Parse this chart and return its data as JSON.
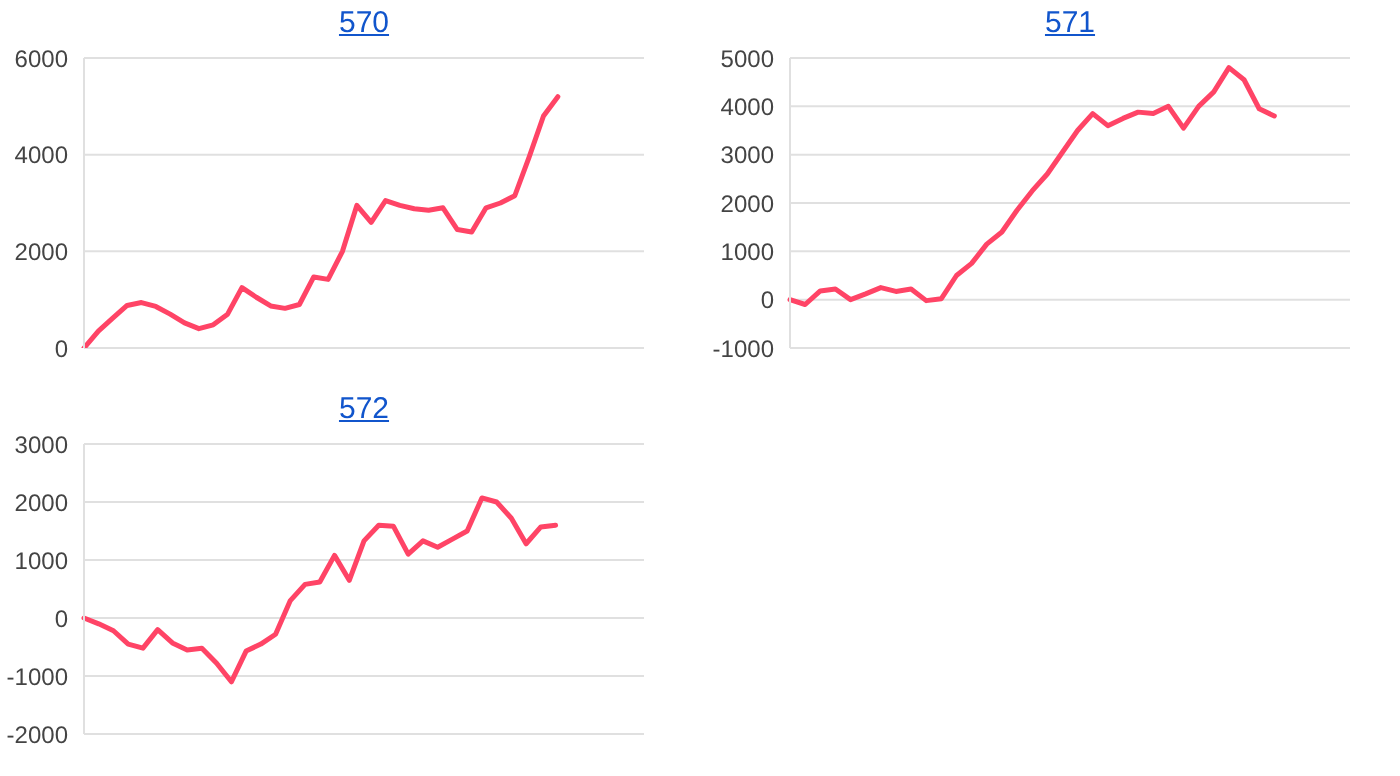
{
  "chart_data": [
    {
      "type": "line",
      "title": "570",
      "categories": [
        null,
        null,
        null,
        null,
        null,
        null,
        null,
        null,
        null,
        null,
        null,
        null,
        null,
        null,
        null,
        null,
        null,
        null,
        null,
        null,
        null,
        null,
        null,
        null,
        null,
        null,
        null,
        null,
        null,
        null,
        null,
        null,
        null,
        null,
        null,
        null,
        null,
        null,
        null,
        null
      ],
      "series": [
        {
          "color": "#ff4466",
          "values": [
            0,
            350,
            620,
            880,
            940,
            860,
            700,
            520,
            400,
            480,
            700,
            1250,
            1050,
            870,
            820,
            900,
            1470,
            1420,
            2000,
            2950,
            2600,
            3050,
            2950,
            2880,
            2850,
            2900,
            2450,
            2400,
            2900,
            3000,
            3150,
            3950,
            4800,
            5200,
            null,
            null,
            null,
            null,
            null,
            null
          ]
        }
      ],
      "ylim": [
        0,
        6000
      ],
      "yticks": [
        0,
        2000,
        4000,
        6000
      ],
      "grid": "y",
      "tick_labels": "y"
    },
    {
      "type": "line",
      "title": "571",
      "categories": [
        null,
        null,
        null,
        null,
        null,
        null,
        null,
        null,
        null,
        null,
        null,
        null,
        null,
        null,
        null,
        null,
        null,
        null,
        null,
        null,
        null,
        null,
        null,
        null,
        null,
        null,
        null,
        null,
        null,
        null,
        null,
        null,
        null,
        null,
        null,
        null,
        null,
        null
      ],
      "series": [
        {
          "color": "#ff4466",
          "values": [
            0,
            -100,
            180,
            220,
            0,
            120,
            250,
            170,
            220,
            -20,
            20,
            500,
            750,
            1150,
            1400,
            1850,
            2250,
            2600,
            3050,
            3500,
            3850,
            3600,
            3750,
            3880,
            3850,
            4000,
            3550,
            4000,
            4300,
            4800,
            4550,
            3950,
            3800,
            null,
            null,
            null,
            null,
            null
          ]
        }
      ],
      "ylim": [
        -1000,
        5000
      ],
      "yticks": [
        -1000,
        0,
        1000,
        2000,
        3000,
        4000,
        5000
      ],
      "grid": "y",
      "tick_labels": "y"
    },
    {
      "type": "line",
      "title": "572",
      "categories": [
        null,
        null,
        null,
        null,
        null,
        null,
        null,
        null,
        null,
        null,
        null,
        null,
        null,
        null,
        null,
        null,
        null,
        null,
        null,
        null,
        null,
        null,
        null,
        null,
        null,
        null,
        null,
        null,
        null,
        null,
        null,
        null,
        null,
        null,
        null,
        null,
        null,
        null,
        null
      ],
      "series": [
        {
          "color": "#ff4466",
          "values": [
            0,
            -100,
            -220,
            -450,
            -520,
            -200,
            -430,
            -550,
            -520,
            -780,
            -1100,
            -570,
            -450,
            -280,
            300,
            580,
            620,
            1080,
            650,
            1330,
            1600,
            1580,
            1100,
            1330,
            1220,
            1360,
            1500,
            2070,
            2000,
            1720,
            1280,
            1570,
            1600,
            null,
            null,
            null,
            null,
            null,
            null
          ]
        }
      ],
      "ylim": [
        -2000,
        3000
      ],
      "yticks": [
        -2000,
        -1000,
        0,
        1000,
        2000,
        3000
      ],
      "grid": "y",
      "tick_labels": "y"
    }
  ]
}
